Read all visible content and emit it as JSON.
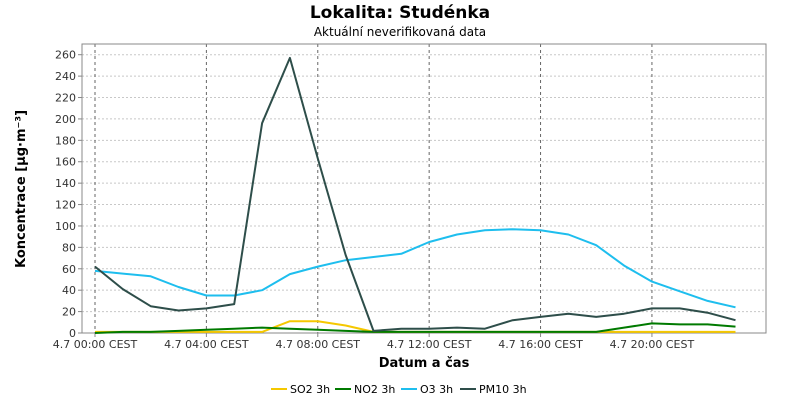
{
  "chart_data": {
    "type": "line",
    "title": "Lokalita: Studénka",
    "subtitle": "Aktuální neverifikovaná data",
    "xlabel": "Datum a čas",
    "ylabel": "Koncentrace [µg·m⁻³]",
    "ylim": [
      0,
      270
    ],
    "y_ticks": [
      0,
      20,
      40,
      60,
      80,
      100,
      120,
      140,
      160,
      180,
      200,
      220,
      240,
      260
    ],
    "xlim": [
      "4.7 00:00",
      "4.7 23:55"
    ],
    "x_ticks": [
      {
        "x": "4.7 00:00",
        "label": "4.7 00:00 CEST"
      },
      {
        "x": "4.7 04:00",
        "label": "4.7 04:00 CEST"
      },
      {
        "x": "4.7 08:00",
        "label": "4.7 08:00 CEST"
      },
      {
        "x": "4.7 12:00",
        "label": "4.7 12:00 CEST"
      },
      {
        "x": "4.7 16:00",
        "label": "4.7 16:00 CEST"
      },
      {
        "x": "4.7 20:00",
        "label": "4.7 20:00 CEST"
      }
    ],
    "grid": true,
    "legend_position": "bottom",
    "x": [
      "4.7 00:00",
      "4.7 01:00",
      "4.7 02:00",
      "4.7 03:00",
      "4.7 04:00",
      "4.7 05:00",
      "4.7 06:00",
      "4.7 07:00",
      "4.7 08:00",
      "4.7 09:00",
      "4.7 10:00",
      "4.7 11:00",
      "4.7 12:00",
      "4.7 13:00",
      "4.7 14:00",
      "4.7 15:00",
      "4.7 16:00",
      "4.7 17:00",
      "4.7 18:00",
      "4.7 19:00",
      "4.7 20:00",
      "4.7 21:00",
      "4.7 22:00",
      "4.7 23:00"
    ],
    "series": [
      {
        "name": "SO2 3h",
        "color": "#f5c800",
        "values": [
          1,
          1,
          1,
          1,
          1,
          1,
          1,
          11,
          11,
          7,
          1,
          1,
          1,
          1,
          1,
          1,
          1,
          1,
          1,
          1,
          1,
          1,
          1,
          1
        ]
      },
      {
        "name": "NO2 3h",
        "color": "#007a00",
        "values": [
          0,
          1,
          1,
          2,
          3,
          4,
          5,
          4,
          3,
          2,
          1,
          1,
          1,
          1,
          1,
          1,
          1,
          1,
          1,
          5,
          9,
          8,
          8,
          6
        ]
      },
      {
        "name": "O3 3h",
        "color": "#1ebeee",
        "values": [
          58,
          null,
          53,
          43,
          35,
          35,
          40,
          55,
          62,
          68,
          71,
          74,
          85,
          92,
          96,
          97,
          96,
          92,
          82,
          63,
          48,
          39,
          30,
          24
        ]
      },
      {
        "name": "PM10 3h",
        "color": "#2e4e4a",
        "values": [
          62,
          41,
          25,
          21,
          23,
          27,
          196,
          257,
          163,
          73,
          2,
          4,
          4,
          5,
          4,
          12,
          15,
          18,
          15,
          18,
          23,
          23,
          19,
          12
        ]
      }
    ]
  }
}
